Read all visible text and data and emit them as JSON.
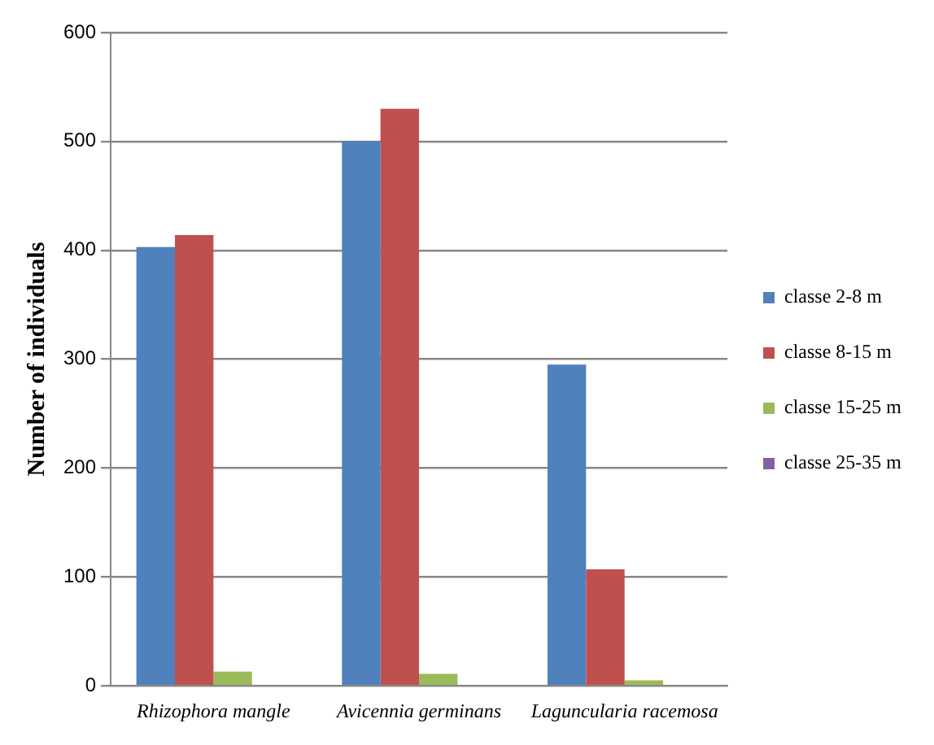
{
  "chart_data": {
    "type": "bar",
    "ylabel": "Number of individuals",
    "categories": [
      "Rhizophora mangle",
      "Avicennia germinans",
      "Laguncularia racemosa"
    ],
    "series": [
      {
        "name": "classe 2-8 m",
        "color": "#4f81bd",
        "values": [
          403,
          500,
          295
        ]
      },
      {
        "name": "classe 8-15 m",
        "color": "#c0504d",
        "values": [
          414,
          530,
          107
        ]
      },
      {
        "name": "classe 15-25 m",
        "color": "#9bbb59",
        "values": [
          13,
          11,
          5
        ]
      },
      {
        "name": "classe 25-35 m",
        "color": "#8064a2",
        "values": [
          0,
          0,
          0
        ]
      }
    ],
    "ylim": [
      0,
      600
    ],
    "yticks": [
      0,
      100,
      200,
      300,
      400,
      500,
      600
    ],
    "grid": "y",
    "legend": "right"
  }
}
